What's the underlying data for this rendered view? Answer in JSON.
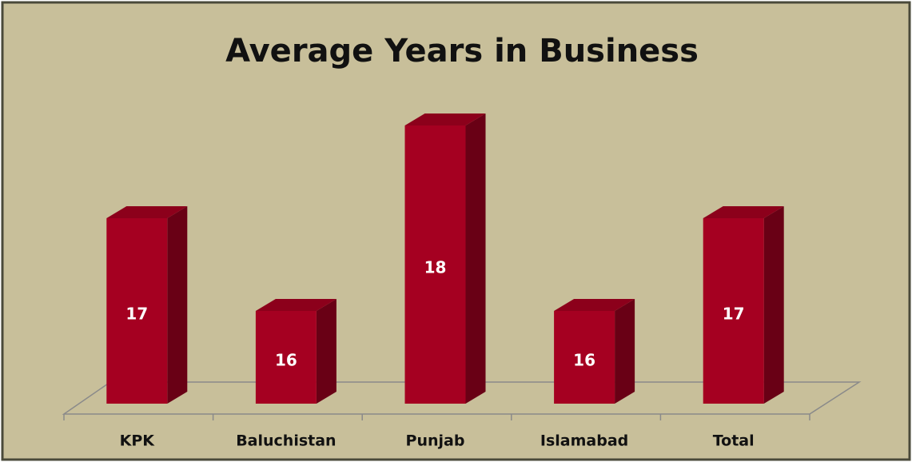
{
  "chart_data": {
    "type": "bar",
    "title": "Average Years in Business",
    "categories": [
      "KPK",
      "Baluchistan",
      "Punjab",
      "Islamabad",
      "Total"
    ],
    "values": [
      17,
      16,
      18,
      16,
      17
    ],
    "color": "#a50021",
    "ylim": [
      15,
      19
    ],
    "data_labels": true
  }
}
